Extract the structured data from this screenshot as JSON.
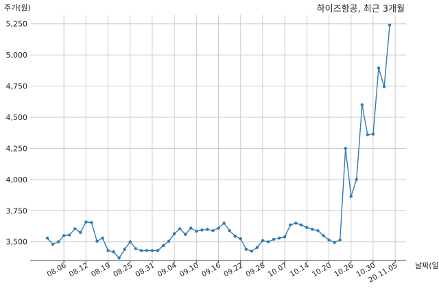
{
  "chart_data": {
    "type": "line",
    "title": "하이즈항공, 최근 3개월",
    "ylabel": "주가(원)",
    "xlabel": "날짜(일)",
    "ylim": [
      3350,
      5320
    ],
    "y_ticks": [
      3500,
      3750,
      4000,
      4250,
      4500,
      4750,
      5000,
      5250
    ],
    "y_tick_labels": [
      "3,500",
      "3,750",
      "4,000",
      "4,250",
      "4,500",
      "4,750",
      "5,000",
      "5,250"
    ],
    "grid": true,
    "line_color": "#2e7bb0",
    "x_tick_labels": [
      "08.06",
      "08.12",
      "08.19",
      "08.25",
      "08.31",
      "09.04",
      "09.10",
      "09.16",
      "09.22",
      "09.28",
      "10.07",
      "10.14",
      "10.20",
      "10.26",
      "10.30",
      "20.11.05"
    ],
    "x_tick_indices": [
      3,
      7,
      11,
      15,
      19,
      23,
      27,
      31,
      35,
      39,
      43,
      47,
      51,
      55,
      59,
      63
    ],
    "series": [
      {
        "values": [
          3530,
          3480,
          3500,
          3550,
          3555,
          3605,
          3575,
          3660,
          3655,
          3505,
          3530,
          3430,
          3420,
          3370,
          3440,
          3500,
          3445,
          3430,
          3430,
          3430,
          3430,
          3470,
          3505,
          3565,
          3605,
          3560,
          3610,
          3585,
          3595,
          3600,
          3590,
          3610,
          3650,
          3590,
          3545,
          3525,
          3440,
          3425,
          3455,
          3510,
          3500,
          3520,
          3530,
          3540,
          3635,
          3650,
          3635,
          3615,
          3600,
          3590,
          3550,
          3515,
          3495,
          3515,
          4250,
          3865,
          4000,
          4600,
          4360,
          4365,
          4895,
          4745,
          5240
        ]
      }
    ]
  }
}
